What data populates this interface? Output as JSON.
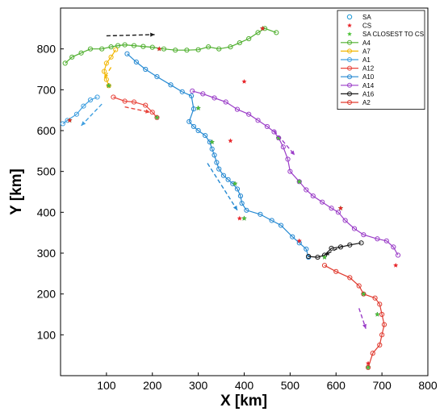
{
  "chart_data": {
    "type": "scatter",
    "xlabel": "X [km]",
    "ylabel": "Y [km]",
    "xlim": [
      0,
      800
    ],
    "ylim": [
      0,
      900
    ],
    "xticks": [
      100,
      200,
      300,
      400,
      500,
      600,
      700,
      800
    ],
    "yticks": [
      100,
      200,
      300,
      400,
      500,
      600,
      700,
      800
    ],
    "grid": false,
    "legend_position": "top-right",
    "legend": [
      {
        "label": "SA",
        "kind": "marker-circle",
        "color": "#1f9ad6"
      },
      {
        "label": "CS",
        "kind": "marker-star",
        "color": "#e8262b"
      },
      {
        "label": "SA CLOSEST TO CS",
        "kind": "marker-star",
        "color": "#4fc33b"
      },
      {
        "label": "A4",
        "kind": "line-circle",
        "color": "#4faf2e"
      },
      {
        "label": "A7",
        "kind": "line-circle",
        "color": "#f2b705"
      },
      {
        "label": "A1",
        "kind": "line-circle",
        "color": "#3f9fe0"
      },
      {
        "label": "A12",
        "kind": "line-circle",
        "color": "#e8453c"
      },
      {
        "label": "A10",
        "kind": "line-circle",
        "color": "#2589d2"
      },
      {
        "label": "A14",
        "kind": "line-circle",
        "color": "#9b3ec8"
      },
      {
        "label": "A16",
        "kind": "line-circle",
        "color": "#1a1a1a"
      },
      {
        "label": "A2",
        "kind": "line-circle",
        "color": "#e03a2f"
      }
    ],
    "series": [
      {
        "name": "A4",
        "color": "#4faf2e",
        "points": [
          [
            10,
            765
          ],
          [
            25,
            780
          ],
          [
            45,
            790
          ],
          [
            65,
            800
          ],
          [
            90,
            800
          ],
          [
            110,
            805
          ],
          [
            125,
            808
          ],
          [
            140,
            810
          ],
          [
            160,
            808
          ],
          [
            180,
            806
          ],
          [
            200,
            804
          ],
          [
            225,
            800
          ],
          [
            250,
            797
          ],
          [
            275,
            797
          ],
          [
            300,
            798
          ],
          [
            322,
            805
          ],
          [
            345,
            800
          ],
          [
            370,
            805
          ],
          [
            390,
            815
          ],
          [
            410,
            825
          ],
          [
            430,
            840
          ],
          [
            445,
            850
          ],
          [
            470,
            840
          ]
        ]
      },
      {
        "name": "A7",
        "color": "#f2b705",
        "points": [
          [
            120,
            798
          ],
          [
            110,
            780
          ],
          [
            100,
            765
          ],
          [
            95,
            745
          ],
          [
            100,
            725
          ],
          [
            105,
            710
          ]
        ]
      },
      {
        "name": "A1",
        "color": "#3f9fe0",
        "points": [
          [
            5,
            617
          ],
          [
            15,
            625
          ],
          [
            35,
            640
          ],
          [
            50,
            660
          ],
          [
            65,
            675
          ],
          [
            80,
            682
          ]
        ]
      },
      {
        "name": "A12",
        "color": "#e8453c",
        "points": [
          [
            115,
            682
          ],
          [
            140,
            672
          ],
          [
            160,
            670
          ],
          [
            185,
            662
          ],
          [
            200,
            645
          ],
          [
            210,
            632
          ]
        ]
      },
      {
        "name": "A10",
        "color": "#2589d2",
        "points": [
          [
            145,
            788
          ],
          [
            165,
            768
          ],
          [
            185,
            750
          ],
          [
            210,
            732
          ],
          [
            240,
            712
          ],
          [
            265,
            695
          ],
          [
            285,
            685
          ],
          [
            290,
            653
          ],
          [
            280,
            622
          ],
          [
            290,
            610
          ],
          [
            300,
            600
          ],
          [
            315,
            588
          ],
          [
            325,
            572
          ],
          [
            330,
            555
          ],
          [
            335,
            540
          ],
          [
            340,
            522
          ],
          [
            345,
            506
          ],
          [
            355,
            490
          ],
          [
            365,
            480
          ],
          [
            375,
            470
          ],
          [
            385,
            457
          ],
          [
            392,
            440
          ],
          [
            395,
            422
          ],
          [
            405,
            405
          ],
          [
            435,
            395
          ],
          [
            460,
            380
          ],
          [
            480,
            368
          ],
          [
            505,
            340
          ],
          [
            520,
            325
          ],
          [
            535,
            310
          ],
          [
            540,
            290
          ]
        ]
      },
      {
        "name": "A14",
        "color": "#9b3ec8",
        "points": [
          [
            287,
            697
          ],
          [
            310,
            690
          ],
          [
            335,
            680
          ],
          [
            360,
            670
          ],
          [
            385,
            652
          ],
          [
            410,
            640
          ],
          [
            430,
            625
          ],
          [
            450,
            610
          ],
          [
            465,
            597
          ],
          [
            475,
            582
          ],
          [
            485,
            560
          ],
          [
            495,
            530
          ],
          [
            500,
            500
          ],
          [
            520,
            475
          ],
          [
            535,
            455
          ],
          [
            550,
            440
          ],
          [
            570,
            425
          ],
          [
            590,
            410
          ],
          [
            605,
            400
          ],
          [
            620,
            380
          ],
          [
            640,
            360
          ],
          [
            660,
            345
          ],
          [
            690,
            335
          ],
          [
            710,
            330
          ],
          [
            725,
            315
          ],
          [
            735,
            295
          ]
        ]
      },
      {
        "name": "A16",
        "color": "#1a1a1a",
        "points": [
          [
            540,
            292
          ],
          [
            560,
            290
          ],
          [
            575,
            295
          ],
          [
            590,
            312
          ],
          [
            610,
            315
          ],
          [
            630,
            320
          ],
          [
            655,
            325
          ]
        ]
      },
      {
        "name": "A2",
        "color": "#e03a2f",
        "points": [
          [
            575,
            270
          ],
          [
            600,
            255
          ],
          [
            630,
            240
          ],
          [
            650,
            220
          ],
          [
            660,
            200
          ],
          [
            685,
            190
          ],
          [
            695,
            175
          ],
          [
            700,
            150
          ],
          [
            705,
            125
          ],
          [
            700,
            100
          ],
          [
            695,
            75
          ],
          [
            680,
            55
          ],
          [
            670,
            20
          ]
        ]
      }
    ],
    "cs_points": [
      [
        20,
        625
      ],
      [
        215,
        800
      ],
      [
        400,
        720
      ],
      [
        370,
        575
      ],
      [
        390,
        385
      ],
      [
        520,
        330
      ],
      [
        610,
        410
      ],
      [
        730,
        270
      ],
      [
        670,
        30
      ],
      [
        440,
        850
      ]
    ],
    "closest_points": [
      [
        20,
        625
      ],
      [
        215,
        800
      ],
      [
        300,
        655
      ],
      [
        380,
        470
      ],
      [
        330,
        572
      ],
      [
        400,
        385
      ],
      [
        475,
        582
      ],
      [
        520,
        475
      ],
      [
        610,
        410
      ],
      [
        575,
        290
      ],
      [
        660,
        200
      ],
      [
        690,
        150
      ],
      [
        670,
        20
      ],
      [
        440,
        850
      ],
      [
        210,
        632
      ],
      [
        105,
        710
      ]
    ],
    "direction_arrows": [
      {
        "color": "#1a1a1a",
        "from": [
          100,
          832
        ],
        "to": [
          205,
          835
        ]
      },
      {
        "color": "#f2b705",
        "from": [
          110,
          755
        ],
        "to": [
          95,
          728
        ]
      },
      {
        "color": "#3f9fe0",
        "from": [
          90,
          665
        ],
        "to": [
          45,
          612
        ]
      },
      {
        "color": "#e8453c",
        "from": [
          140,
          658
        ],
        "to": [
          195,
          645
        ]
      },
      {
        "color": "#2589d2",
        "from": [
          320,
          520
        ],
        "to": [
          385,
          405
        ]
      },
      {
        "color": "#9b3ec8",
        "from": [
          465,
          600
        ],
        "to": [
          510,
          540
        ]
      },
      {
        "color": "#1a1a1a",
        "from": [
          615,
          318
        ],
        "to": [
          575,
          295
        ]
      },
      {
        "color": "#9b3ec8",
        "from": [
          650,
          165
        ],
        "to": [
          665,
          115
        ]
      }
    ]
  }
}
